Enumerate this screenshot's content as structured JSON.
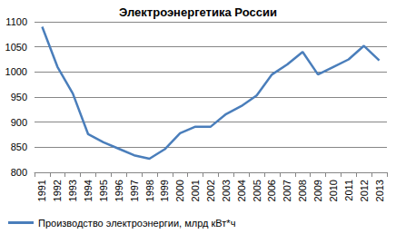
{
  "chart_data": {
    "type": "line",
    "title": "Электроэнергетика России",
    "categories": [
      "1991",
      "1992",
      "1993",
      "1994",
      "1995",
      "1996",
      "1997",
      "1998",
      "1999",
      "2000",
      "2001",
      "2002",
      "2003",
      "2004",
      "2005",
      "2006",
      "2007",
      "2008",
      "2009",
      "2010",
      "2011",
      "2012",
      "2013"
    ],
    "series": [
      {
        "name": "Производство электроэнергии, млрд кВт*ч",
        "color": "#4a7ebb",
        "values": [
          1090,
          1010,
          957,
          876,
          860,
          847,
          834,
          827,
          846,
          878,
          891,
          891,
          916,
          932,
          953,
          995,
          1015,
          1040,
          995,
          1010,
          1025,
          1052,
          1023
        ]
      }
    ],
    "ylim": [
      800,
      1100
    ],
    "yticks": [
      800,
      850,
      900,
      950,
      1000,
      1050,
      1100
    ],
    "grid": true,
    "legend": "bottom"
  }
}
